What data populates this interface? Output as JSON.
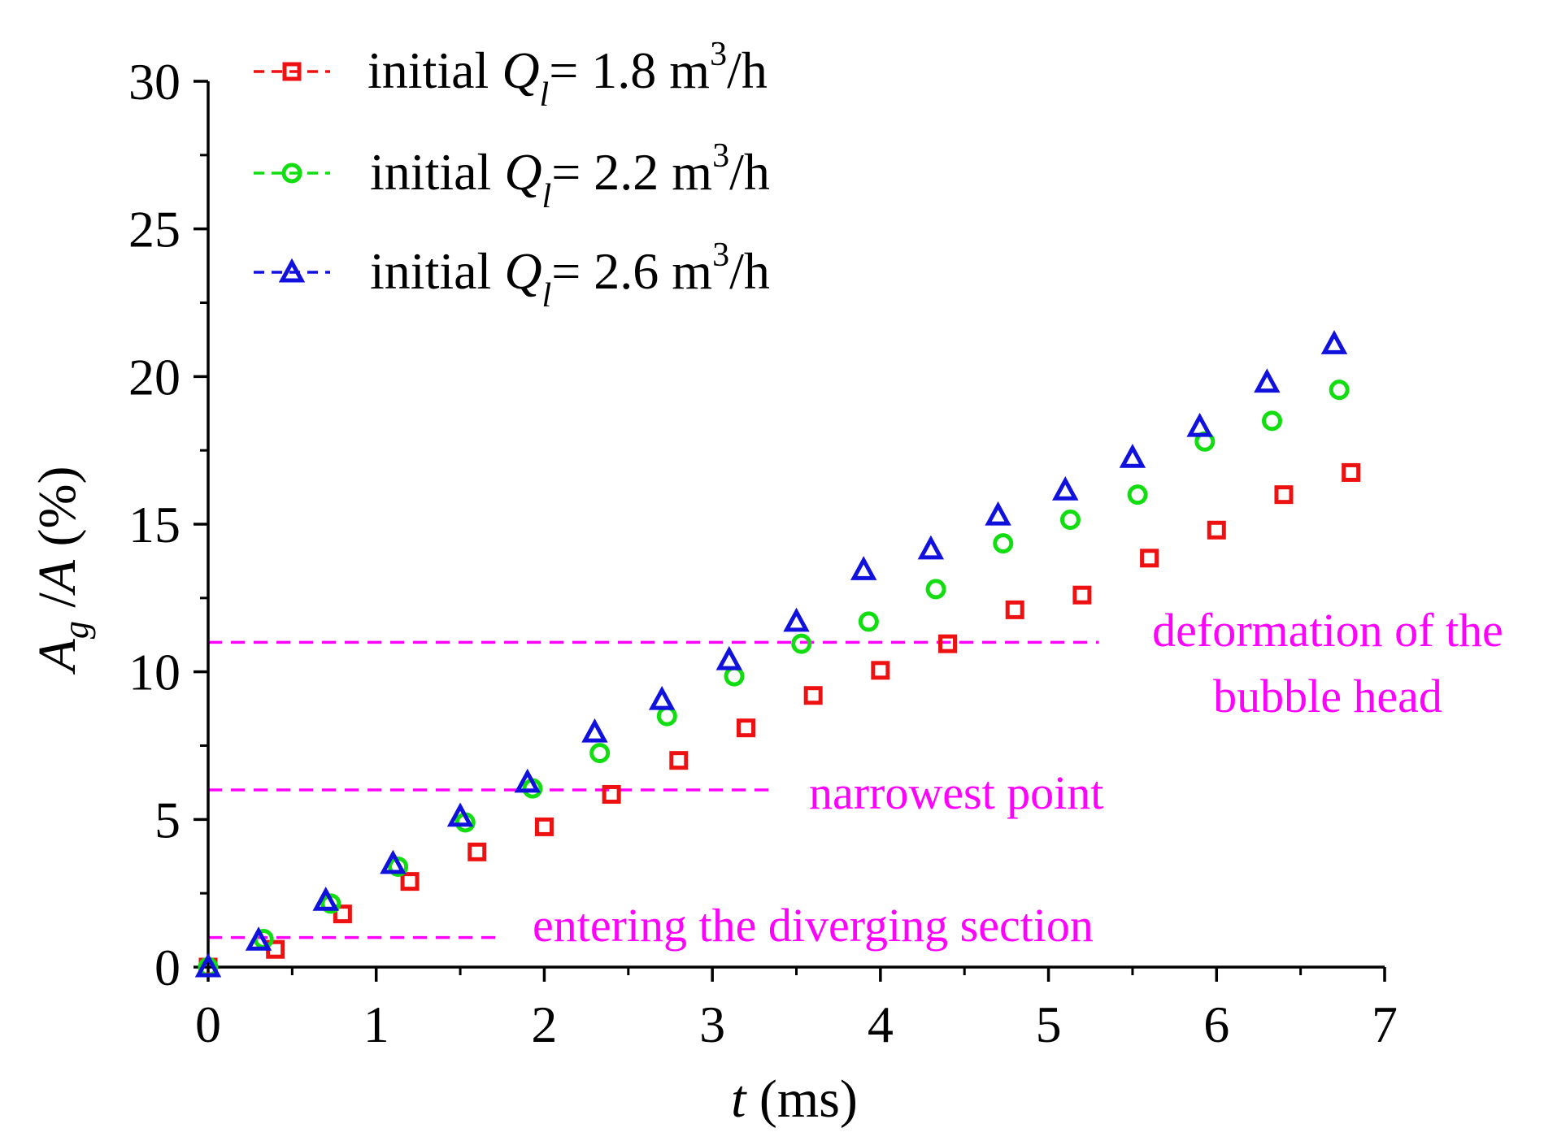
{
  "chart_data": {
    "type": "scatter",
    "xlabel_italic": "t",
    "xlabel_rest": " (ms)",
    "ylabel_parts": {
      "a1": "A",
      "sub": "g",
      "mid": " /",
      "a2": "A",
      "tail": " (%)"
    },
    "xlim": [
      0,
      7
    ],
    "ylim": [
      0,
      30
    ],
    "x_ticks": [
      "0",
      "1",
      "2",
      "3",
      "4",
      "5",
      "6",
      "7"
    ],
    "y_ticks": [
      "0",
      "5",
      "10",
      "15",
      "20",
      "25",
      "30"
    ],
    "series": [
      {
        "name": "initial Q_l = 1.8 m^3/h",
        "legend": {
          "pre": "initial ",
          "q": "Q",
          "sub": "l",
          "eq": "= 1.8 m",
          "sup": "3",
          "unit": "/h"
        },
        "marker": "square",
        "color": "#ee1111",
        "x": [
          0,
          0.4,
          0.8,
          1.2,
          1.6,
          2.0,
          2.4,
          2.8,
          3.2,
          3.6,
          4.0,
          4.4,
          4.8,
          5.2,
          5.6,
          6.0,
          6.4,
          6.8
        ],
        "y": [
          0,
          0.6,
          1.8,
          2.9,
          3.9,
          4.75,
          5.85,
          7.0,
          8.1,
          9.2,
          10.05,
          10.95,
          12.1,
          12.6,
          13.85,
          14.8,
          16.0,
          16.75
        ]
      },
      {
        "name": "initial Q_l = 2.2 m^3/h",
        "legend": {
          "pre": "initial ",
          "q": "Q",
          "sub": "l",
          "eq": "= 2.2 m",
          "sup": "3",
          "unit": "/h"
        },
        "marker": "circle",
        "color": "#11dd11",
        "x": [
          0,
          0.33,
          0.73,
          1.13,
          1.53,
          1.93,
          2.33,
          2.73,
          3.13,
          3.53,
          3.93,
          4.33,
          4.73,
          5.13,
          5.53,
          5.93,
          6.33,
          6.73
        ],
        "y": [
          0,
          0.95,
          2.15,
          3.4,
          4.9,
          6.05,
          7.25,
          8.5,
          9.85,
          10.95,
          11.7,
          12.8,
          14.35,
          15.15,
          16.0,
          17.8,
          18.5,
          19.55
        ]
      },
      {
        "name": "initial Q_l = 2.6 m^3/h",
        "legend": {
          "pre": "initial ",
          "q": "Q",
          "sub": "l",
          "eq": "= 2.6 m",
          "sup": "3",
          "unit": "/h"
        },
        "marker": "triangle",
        "color": "#1111dd",
        "x": [
          0,
          0.3,
          0.7,
          1.1,
          1.5,
          1.9,
          2.3,
          2.7,
          3.1,
          3.5,
          3.9,
          4.3,
          4.7,
          5.1,
          5.5,
          5.9,
          6.3,
          6.7
        ],
        "y": [
          0,
          0.9,
          2.25,
          3.5,
          5.1,
          6.25,
          7.95,
          9.05,
          10.4,
          11.7,
          13.45,
          14.15,
          15.3,
          16.15,
          17.25,
          18.3,
          19.8,
          21.1
        ]
      }
    ],
    "reference_lines": [
      {
        "y": 1,
        "x_end": 1.75,
        "label": [
          "entering the diverging section"
        ],
        "color": "#ff00ff"
      },
      {
        "y": 6,
        "x_end": 3.35,
        "label": [
          "narrowest point"
        ],
        "color": "#ff00ff"
      },
      {
        "y": 11,
        "x_end": 5.3,
        "label": [
          "deformation of the",
          "bubble head"
        ],
        "color": "#ff00ff"
      }
    ]
  }
}
